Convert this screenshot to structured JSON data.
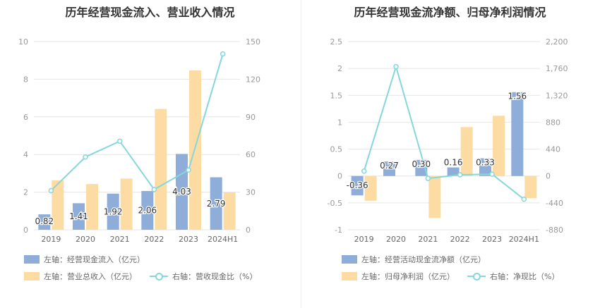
{
  "colors": {
    "bar_primary": "#8eadd9",
    "bar_secondary": "#fddca3",
    "line": "#85d7dc",
    "grid": "#e6e6e6",
    "axis_text": "#999999"
  },
  "chart_data": [
    {
      "type": "bar",
      "title": "历年经营现金流入、营业收入情况",
      "categories": [
        "2019",
        "2020",
        "2021",
        "2022",
        "2023",
        "2024H1"
      ],
      "left_axis": {
        "ticks": [
          "0",
          "2",
          "4",
          "6",
          "8",
          "10"
        ],
        "ylim": [
          0,
          10
        ]
      },
      "right_axis": {
        "ticks": [
          "0",
          "30",
          "60",
          "90",
          "120",
          "150"
        ],
        "ylim": [
          0,
          150
        ]
      },
      "grid": true,
      "legend_placement": "bottom-left",
      "series": [
        {
          "name": "左轴：经营现金流入（亿元）",
          "kind": "bar",
          "axis": "left",
          "color": "#8eadd9",
          "values": [
            0.82,
            1.41,
            1.92,
            2.06,
            4.03,
            2.79
          ],
          "labels": [
            "0.82",
            "1.41",
            "1.92",
            "2.06",
            "4.03",
            "2.79"
          ]
        },
        {
          "name": "左轴：营业总收入（亿元）",
          "kind": "bar",
          "axis": "left",
          "color": "#fddca3",
          "values": [
            2.63,
            2.43,
            2.72,
            6.42,
            8.47,
            1.99
          ]
        },
        {
          "name": "右轴：营收现金比（%）",
          "kind": "line",
          "axis": "right",
          "color": "#85d7dc",
          "values": [
            31.2,
            58.0,
            70.6,
            32.1,
            47.6,
            140.2
          ]
        }
      ]
    },
    {
      "type": "bar",
      "title": "历年经营现金流净额、归母净利润情况",
      "categories": [
        "2019",
        "2020",
        "2021",
        "2022",
        "2023",
        "2024H1"
      ],
      "left_axis": {
        "ticks": [
          "-1",
          "-0.5",
          "0",
          "0.5",
          "1",
          "1.5",
          "2",
          "2.5"
        ],
        "ylim": [
          -1,
          2.5
        ]
      },
      "right_axis": {
        "ticks": [
          "-880",
          "-440",
          "0",
          "440",
          "880",
          "1,320",
          "1,760",
          "2,200"
        ],
        "ylim": [
          -880,
          2200
        ]
      },
      "grid": true,
      "legend_placement": "bottom-left",
      "series": [
        {
          "name": "左轴：经营活动现金流净额（亿元）",
          "kind": "bar",
          "axis": "left",
          "color": "#8eadd9",
          "values": [
            -0.36,
            0.27,
            0.3,
            0.16,
            0.33,
            1.56
          ],
          "labels": [
            "-0.36",
            "0.27",
            "0.30",
            "0.16",
            "0.33",
            "1.56"
          ]
        },
        {
          "name": "左轴：归母净利润（亿元）",
          "kind": "bar",
          "axis": "left",
          "color": "#fddca3",
          "values": [
            -0.46,
            0.0,
            -0.78,
            0.91,
            1.12,
            -0.41
          ]
        },
        {
          "name": "右轴：净现比（%）",
          "kind": "line",
          "axis": "right",
          "color": "#85d7dc",
          "values": [
            80,
            1790,
            -40,
            20,
            30,
            -380
          ]
        }
      ]
    }
  ]
}
